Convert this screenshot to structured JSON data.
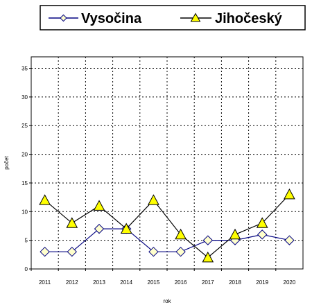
{
  "chart_data": {
    "type": "line",
    "title": "",
    "xlabel": "rok",
    "ylabel": "počet",
    "categories": [
      "2011",
      "2012",
      "2013",
      "2014",
      "2015",
      "2016",
      "2017",
      "2018",
      "2019",
      "2020"
    ],
    "yticks": [
      "0",
      "5",
      "10",
      "15",
      "20",
      "25",
      "30",
      "35"
    ],
    "ylim": [
      0,
      37
    ],
    "grid": true,
    "legend_position": "top",
    "series": [
      {
        "name": "Vysočina",
        "marker": "diamond",
        "color": "#000080",
        "marker_fill": "#ffffcc",
        "values": [
          3,
          3,
          7,
          7,
          3,
          3,
          5,
          5,
          6,
          5
        ]
      },
      {
        "name": "Jihočeský",
        "marker": "triangle",
        "color": "#000000",
        "marker_fill": "#ffff00",
        "values": [
          12,
          8,
          11,
          7,
          12,
          6,
          2,
          6,
          8,
          13
        ]
      }
    ]
  }
}
